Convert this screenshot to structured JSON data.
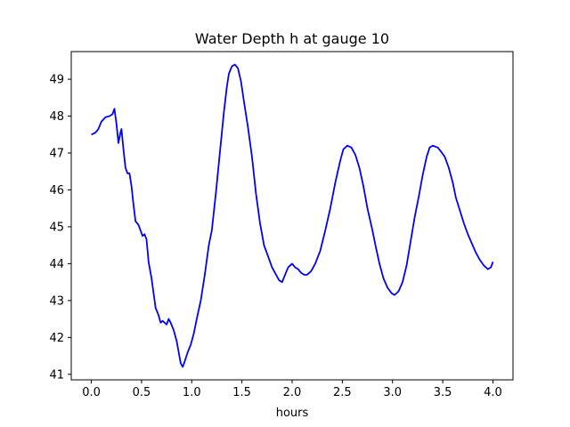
{
  "chart_data": {
    "type": "line",
    "title": "Water Depth h at gauge 10",
    "xlabel": "hours",
    "ylabel": "",
    "xlim": [
      -0.2,
      4.2
    ],
    "ylim": [
      40.85,
      49.75
    ],
    "xticks": [
      0.0,
      0.5,
      1.0,
      1.5,
      2.0,
      2.5,
      3.0,
      3.5,
      4.0
    ],
    "xtick_labels": [
      "0.0",
      "0.5",
      "1.0",
      "1.5",
      "2.0",
      "2.5",
      "3.0",
      "3.5",
      "4.0"
    ],
    "yticks": [
      41,
      42,
      43,
      44,
      45,
      46,
      47,
      48,
      49
    ],
    "ytick_labels": [
      "41",
      "42",
      "43",
      "44",
      "45",
      "46",
      "47",
      "48",
      "49"
    ],
    "grid": false,
    "legend": "none",
    "series": [
      {
        "color": "#0000ff",
        "points": [
          [
            0.0,
            47.5
          ],
          [
            0.04,
            47.55
          ],
          [
            0.07,
            47.65
          ],
          [
            0.1,
            47.85
          ],
          [
            0.14,
            47.97
          ],
          [
            0.18,
            48.0
          ],
          [
            0.21,
            48.05
          ],
          [
            0.23,
            48.2
          ],
          [
            0.25,
            47.8
          ],
          [
            0.27,
            47.27
          ],
          [
            0.29,
            47.55
          ],
          [
            0.3,
            47.65
          ],
          [
            0.32,
            47.1
          ],
          [
            0.34,
            46.6
          ],
          [
            0.36,
            46.45
          ],
          [
            0.38,
            46.45
          ],
          [
            0.4,
            46.1
          ],
          [
            0.42,
            45.6
          ],
          [
            0.44,
            45.15
          ],
          [
            0.47,
            45.05
          ],
          [
            0.49,
            44.9
          ],
          [
            0.51,
            44.75
          ],
          [
            0.53,
            44.8
          ],
          [
            0.55,
            44.65
          ],
          [
            0.57,
            44.05
          ],
          [
            0.6,
            43.6
          ],
          [
            0.62,
            43.2
          ],
          [
            0.64,
            42.8
          ],
          [
            0.67,
            42.6
          ],
          [
            0.69,
            42.4
          ],
          [
            0.71,
            42.45
          ],
          [
            0.73,
            42.4
          ],
          [
            0.75,
            42.35
          ],
          [
            0.77,
            42.5
          ],
          [
            0.79,
            42.4
          ],
          [
            0.82,
            42.2
          ],
          [
            0.85,
            41.9
          ],
          [
            0.87,
            41.6
          ],
          [
            0.89,
            41.3
          ],
          [
            0.91,
            41.2
          ],
          [
            0.93,
            41.35
          ],
          [
            0.96,
            41.6
          ],
          [
            0.99,
            41.8
          ],
          [
            1.02,
            42.1
          ],
          [
            1.05,
            42.5
          ],
          [
            1.09,
            43.0
          ],
          [
            1.13,
            43.7
          ],
          [
            1.17,
            44.5
          ],
          [
            1.2,
            44.9
          ],
          [
            1.24,
            45.9
          ],
          [
            1.28,
            47.0
          ],
          [
            1.32,
            48.1
          ],
          [
            1.35,
            48.8
          ],
          [
            1.37,
            49.15
          ],
          [
            1.4,
            49.35
          ],
          [
            1.43,
            49.4
          ],
          [
            1.46,
            49.3
          ],
          [
            1.49,
            48.95
          ],
          [
            1.52,
            48.4
          ],
          [
            1.56,
            47.7
          ],
          [
            1.6,
            46.9
          ],
          [
            1.64,
            45.9
          ],
          [
            1.68,
            45.1
          ],
          [
            1.72,
            44.5
          ],
          [
            1.76,
            44.2
          ],
          [
            1.8,
            43.9
          ],
          [
            1.84,
            43.7
          ],
          [
            1.87,
            43.55
          ],
          [
            1.9,
            43.5
          ],
          [
            1.93,
            43.7
          ],
          [
            1.96,
            43.9
          ],
          [
            2.0,
            44.0
          ],
          [
            2.03,
            43.9
          ],
          [
            2.06,
            43.85
          ],
          [
            2.09,
            43.75
          ],
          [
            2.12,
            43.7
          ],
          [
            2.15,
            43.7
          ],
          [
            2.19,
            43.8
          ],
          [
            2.23,
            44.0
          ],
          [
            2.28,
            44.35
          ],
          [
            2.33,
            44.9
          ],
          [
            2.38,
            45.5
          ],
          [
            2.43,
            46.2
          ],
          [
            2.48,
            46.8
          ],
          [
            2.51,
            47.1
          ],
          [
            2.55,
            47.2
          ],
          [
            2.59,
            47.15
          ],
          [
            2.63,
            46.95
          ],
          [
            2.67,
            46.6
          ],
          [
            2.71,
            46.1
          ],
          [
            2.75,
            45.5
          ],
          [
            2.8,
            44.9
          ],
          [
            2.83,
            44.5
          ],
          [
            2.87,
            44.0
          ],
          [
            2.91,
            43.6
          ],
          [
            2.95,
            43.35
          ],
          [
            2.99,
            43.2
          ],
          [
            3.02,
            43.15
          ],
          [
            3.06,
            43.25
          ],
          [
            3.1,
            43.5
          ],
          [
            3.14,
            43.95
          ],
          [
            3.18,
            44.6
          ],
          [
            3.22,
            45.25
          ],
          [
            3.26,
            45.8
          ],
          [
            3.3,
            46.4
          ],
          [
            3.34,
            46.9
          ],
          [
            3.37,
            47.15
          ],
          [
            3.4,
            47.2
          ],
          [
            3.45,
            47.15
          ],
          [
            3.48,
            47.05
          ],
          [
            3.52,
            46.9
          ],
          [
            3.56,
            46.6
          ],
          [
            3.6,
            46.2
          ],
          [
            3.63,
            45.8
          ],
          [
            3.67,
            45.45
          ],
          [
            3.71,
            45.1
          ],
          [
            3.75,
            44.8
          ],
          [
            3.79,
            44.55
          ],
          [
            3.83,
            44.3
          ],
          [
            3.87,
            44.1
          ],
          [
            3.91,
            43.95
          ],
          [
            3.95,
            43.85
          ],
          [
            3.98,
            43.9
          ],
          [
            4.0,
            44.05
          ]
        ]
      }
    ]
  }
}
